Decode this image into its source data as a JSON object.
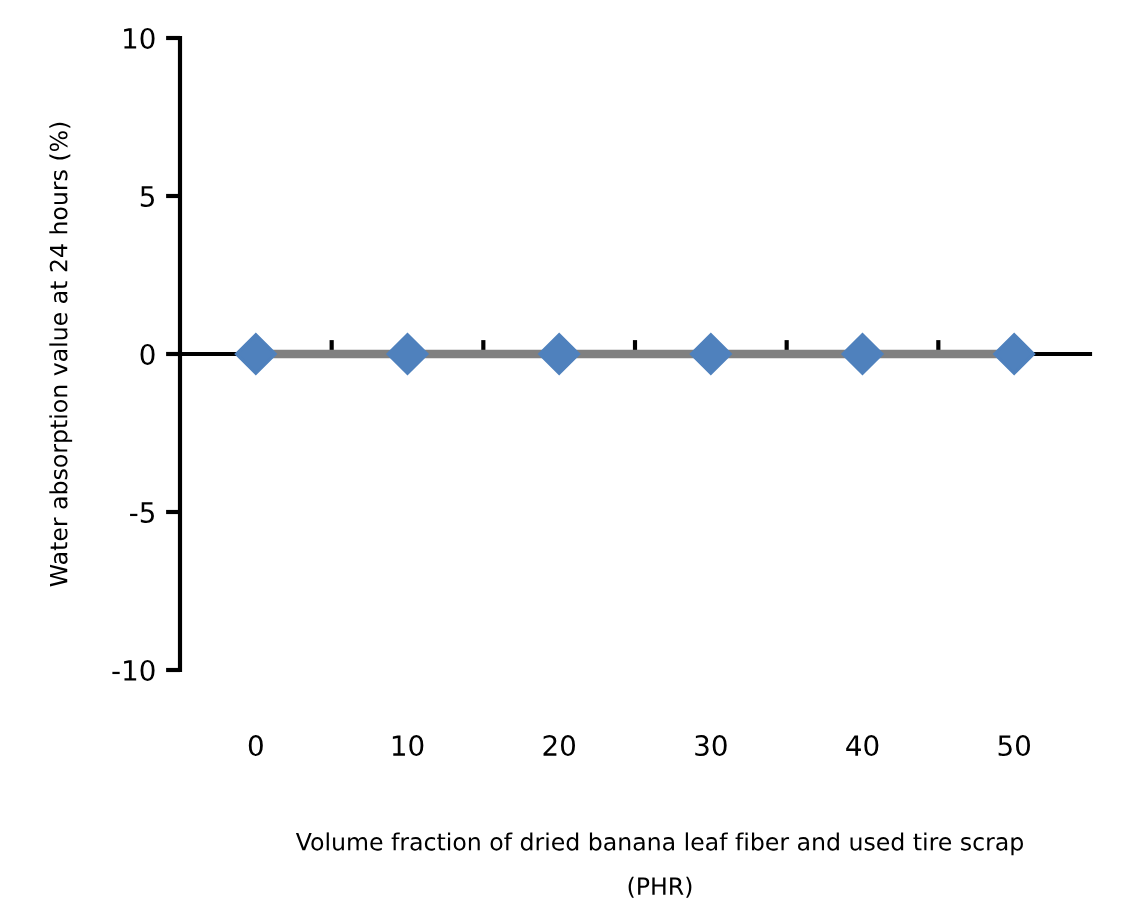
{
  "chart_data": {
    "type": "line",
    "categories": [
      "0",
      "10",
      "20",
      "30",
      "40",
      "50"
    ],
    "series": [
      {
        "color": "#808080",
        "colors": [
          "#4f81bd",
          "#4f81bd",
          "#4f81bd",
          "#4f81bd",
          "#4f81bd",
          "#4f81bd"
        ],
        "values": [
          0,
          0,
          0,
          0,
          0,
          0
        ]
      }
    ],
    "marker": "diamond",
    "line_style": "solid",
    "ylim": [
      -10,
      10
    ],
    "yticks": [
      -10,
      -5,
      0,
      5,
      10
    ],
    "xlabel": "Volume fraction of dried banana leaf fiber and used tire scrap\n(PHR)",
    "ylabel": "Water absorption value at 24 hours (%)",
    "legend": false
  }
}
